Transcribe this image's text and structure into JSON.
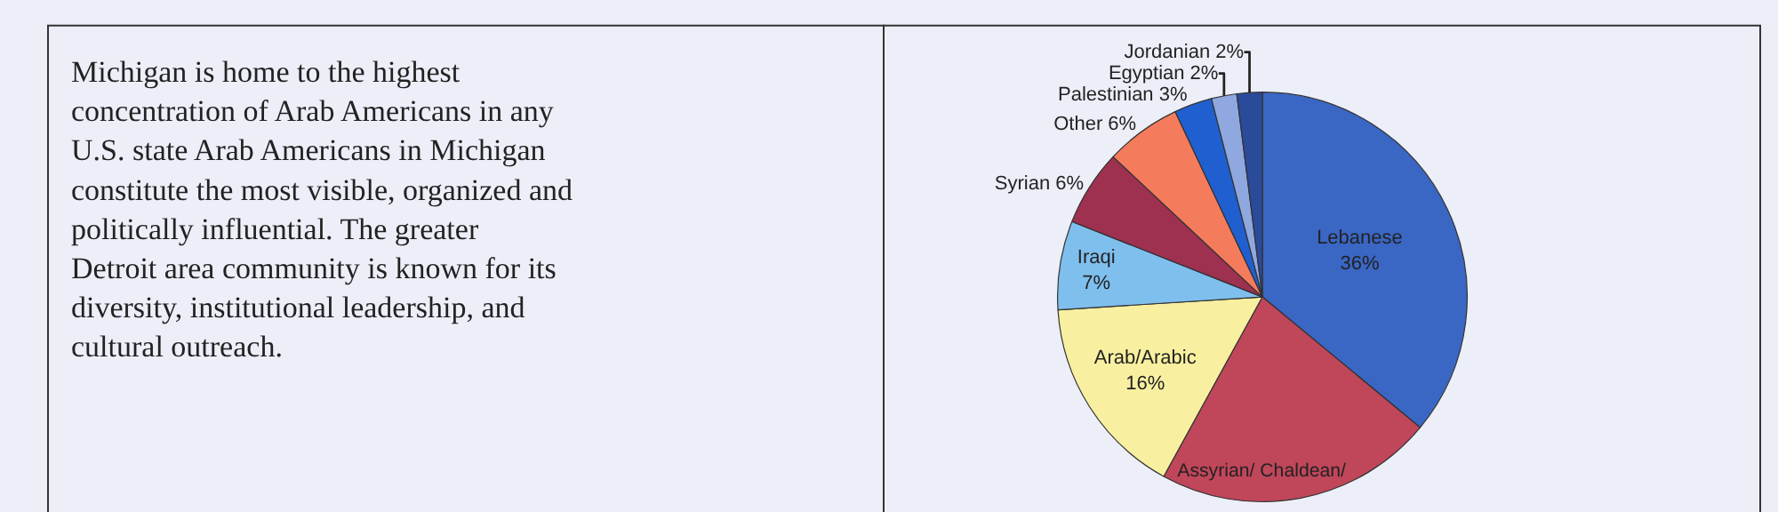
{
  "chart_data": {
    "type": "pie",
    "categories": [
      "Lebanese",
      "Assyrian/ Chaldean/",
      "Arab/Arabic",
      "Iraqi",
      "Syrian",
      "Other",
      "Palestinian",
      "Egyptian",
      "Jordanian"
    ],
    "values": [
      36,
      22,
      16,
      7,
      6,
      6,
      3,
      2,
      2
    ],
    "value_labels": [
      "36%",
      null,
      "16%",
      "7%",
      "6%",
      "6%",
      "3%",
      "2%",
      "2%"
    ],
    "colors": [
      "#3a66c4",
      "#c0465a",
      "#f8f0a0",
      "#7fbfee",
      "#9e3050",
      "#f47c5c",
      "#1f5fd0",
      "#8fa8e0",
      "#2a4a9a"
    ],
    "annotations": [
      "Michigan is home to the highest concentration of Arab Americans in any U.S. state Arab Americans in Michigan constitute the most visible, organized and politically influential. The greater Detroit area community is known for its diversity, institutional leadership, and cultural outreach."
    ],
    "legend": false
  }
}
